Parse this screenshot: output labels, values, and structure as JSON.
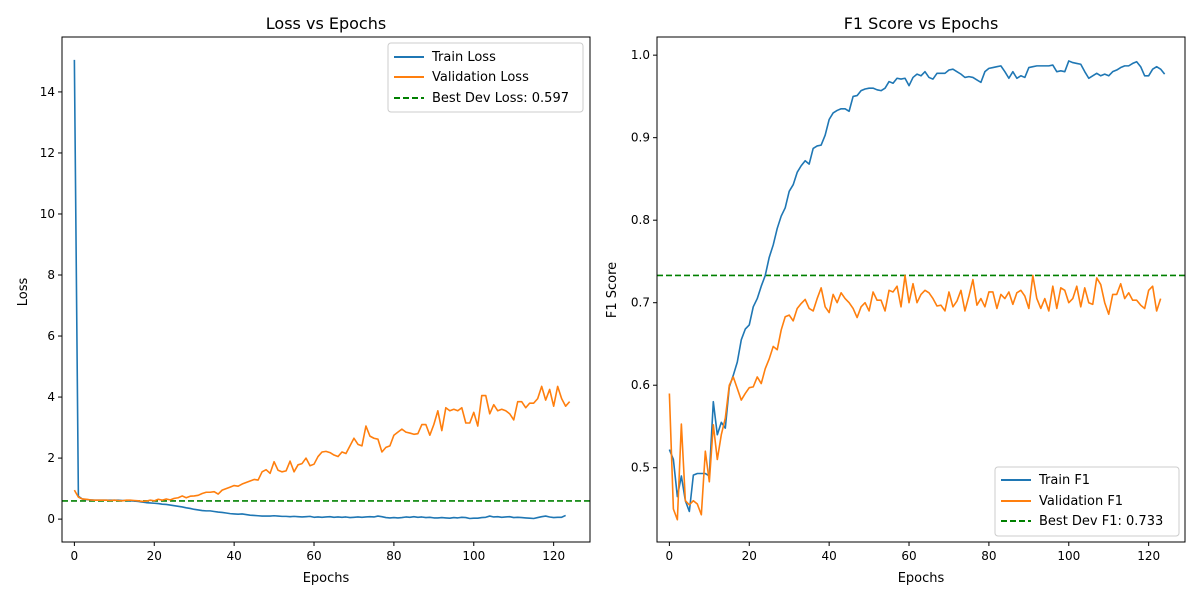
{
  "chart_data": [
    {
      "id": "loss",
      "type": "line",
      "title": "Loss vs Epochs",
      "xlabel": "Epochs",
      "ylabel": "Loss",
      "xlim": [
        -3.1,
        129.1
      ],
      "ylim": [
        -0.75,
        15.8
      ],
      "xticks": [
        0,
        20,
        40,
        60,
        80,
        100,
        120
      ],
      "yticks": [
        0,
        2,
        4,
        6,
        8,
        10,
        12,
        14
      ],
      "grid": false,
      "legend_position": "top-right",
      "hline": {
        "label": "Best Dev Loss: 0.597",
        "value": 0.597,
        "color": "#008000"
      },
      "series": [
        {
          "name": "Train Loss",
          "color": "#1f77b4",
          "x_start": 0,
          "values": [
            15.05,
            0.75,
            0.66,
            0.64,
            0.63,
            0.62,
            0.62,
            0.62,
            0.62,
            0.62,
            0.62,
            0.62,
            0.61,
            0.61,
            0.6,
            0.59,
            0.58,
            0.56,
            0.54,
            0.53,
            0.52,
            0.51,
            0.49,
            0.48,
            0.46,
            0.44,
            0.42,
            0.4,
            0.37,
            0.35,
            0.32,
            0.3,
            0.28,
            0.27,
            0.27,
            0.25,
            0.23,
            0.22,
            0.2,
            0.18,
            0.17,
            0.16,
            0.17,
            0.15,
            0.13,
            0.12,
            0.11,
            0.1,
            0.1,
            0.1,
            0.11,
            0.1,
            0.09,
            0.09,
            0.08,
            0.09,
            0.08,
            0.07,
            0.08,
            0.09,
            0.06,
            0.07,
            0.06,
            0.07,
            0.08,
            0.06,
            0.07,
            0.06,
            0.07,
            0.05,
            0.06,
            0.07,
            0.06,
            0.07,
            0.08,
            0.07,
            0.1,
            0.08,
            0.05,
            0.04,
            0.05,
            0.04,
            0.05,
            0.07,
            0.06,
            0.08,
            0.06,
            0.07,
            0.05,
            0.06,
            0.04,
            0.04,
            0.05,
            0.04,
            0.03,
            0.05,
            0.04,
            0.06,
            0.05,
            0.02,
            0.03,
            0.03,
            0.05,
            0.06,
            0.1,
            0.07,
            0.08,
            0.06,
            0.07,
            0.08,
            0.05,
            0.06,
            0.05,
            0.04,
            0.03,
            0.02,
            0.05,
            0.08,
            0.1,
            0.07,
            0.05,
            0.06,
            0.06,
            0.12
          ]
        },
        {
          "name": "Validation Loss",
          "color": "#ff7f0e",
          "x_start": 0,
          "values": [
            0.95,
            0.72,
            0.66,
            0.65,
            0.63,
            0.62,
            0.62,
            0.62,
            0.62,
            0.61,
            0.62,
            0.61,
            0.6,
            0.62,
            0.62,
            0.61,
            0.6,
            0.58,
            0.59,
            0.62,
            0.6,
            0.65,
            0.62,
            0.66,
            0.63,
            0.68,
            0.7,
            0.76,
            0.7,
            0.75,
            0.76,
            0.78,
            0.84,
            0.88,
            0.88,
            0.9,
            0.82,
            0.95,
            1.0,
            1.05,
            1.1,
            1.08,
            1.15,
            1.2,
            1.25,
            1.3,
            1.28,
            1.55,
            1.62,
            1.5,
            1.88,
            1.6,
            1.55,
            1.58,
            1.9,
            1.55,
            1.78,
            1.82,
            2.0,
            1.75,
            1.8,
            2.05,
            2.2,
            2.22,
            2.18,
            2.1,
            2.05,
            2.2,
            2.15,
            2.4,
            2.65,
            2.45,
            2.4,
            3.05,
            2.72,
            2.65,
            2.62,
            2.2,
            2.35,
            2.4,
            2.75,
            2.85,
            2.95,
            2.85,
            2.82,
            2.78,
            2.8,
            3.1,
            3.1,
            2.75,
            3.1,
            3.55,
            2.9,
            3.65,
            3.55,
            3.6,
            3.55,
            3.65,
            3.15,
            3.15,
            3.5,
            3.05,
            4.05,
            4.05,
            3.45,
            3.75,
            3.55,
            3.6,
            3.55,
            3.45,
            3.25,
            3.85,
            3.85,
            3.65,
            3.8,
            3.8,
            3.95,
            4.35,
            3.9,
            4.25,
            3.7,
            4.35,
            3.95,
            3.7,
            3.85
          ]
        }
      ]
    },
    {
      "id": "f1",
      "type": "line",
      "title": "F1 Score vs Epochs",
      "xlabel": "Epochs",
      "ylabel": "F1 Score",
      "xlim": [
        -3.1,
        129.1
      ],
      "ylim": [
        0.41,
        1.022
      ],
      "xticks": [
        0,
        20,
        40,
        60,
        80,
        100,
        120
      ],
      "yticks": [
        0.5,
        0.6,
        0.7,
        0.8,
        0.9,
        1.0
      ],
      "grid": false,
      "legend_position": "bottom-right",
      "hline": {
        "label": "Best Dev F1: 0.733",
        "value": 0.733,
        "color": "#008000"
      },
      "series": [
        {
          "name": "Train F1",
          "color": "#1f77b4",
          "x_start": 0,
          "values": [
            0.522,
            0.51,
            0.465,
            0.49,
            0.46,
            0.447,
            0.491,
            0.493,
            0.493,
            0.493,
            0.49,
            0.58,
            0.54,
            0.555,
            0.548,
            0.598,
            0.612,
            0.628,
            0.655,
            0.668,
            0.673,
            0.695,
            0.705,
            0.72,
            0.733,
            0.755,
            0.77,
            0.79,
            0.805,
            0.815,
            0.835,
            0.843,
            0.858,
            0.866,
            0.872,
            0.868,
            0.887,
            0.89,
            0.891,
            0.903,
            0.922,
            0.93,
            0.933,
            0.935,
            0.935,
            0.932,
            0.95,
            0.951,
            0.957,
            0.959,
            0.96,
            0.96,
            0.958,
            0.957,
            0.96,
            0.968,
            0.966,
            0.972,
            0.971,
            0.972,
            0.963,
            0.973,
            0.977,
            0.975,
            0.98,
            0.973,
            0.971,
            0.978,
            0.978,
            0.978,
            0.982,
            0.983,
            0.98,
            0.977,
            0.973,
            0.974,
            0.973,
            0.97,
            0.967,
            0.98,
            0.984,
            0.985,
            0.986,
            0.987,
            0.98,
            0.972,
            0.98,
            0.972,
            0.975,
            0.973,
            0.985,
            0.986,
            0.987,
            0.987,
            0.987,
            0.987,
            0.988,
            0.98,
            0.981,
            0.98,
            0.993,
            0.991,
            0.99,
            0.989,
            0.98,
            0.972,
            0.975,
            0.978,
            0.975,
            0.977,
            0.975,
            0.98,
            0.982,
            0.985,
            0.987,
            0.987,
            0.99,
            0.992,
            0.986,
            0.975,
            0.975,
            0.983,
            0.986,
            0.983,
            0.977
          ]
        },
        {
          "name": "Validation F1",
          "color": "#ff7f0e",
          "x_start": 0,
          "values": [
            0.59,
            0.45,
            0.437,
            0.553,
            0.46,
            0.455,
            0.46,
            0.456,
            0.443,
            0.52,
            0.483,
            0.552,
            0.51,
            0.54,
            0.56,
            0.6,
            0.61,
            0.596,
            0.582,
            0.59,
            0.597,
            0.598,
            0.61,
            0.602,
            0.62,
            0.632,
            0.647,
            0.643,
            0.667,
            0.683,
            0.685,
            0.678,
            0.693,
            0.699,
            0.704,
            0.693,
            0.69,
            0.705,
            0.718,
            0.695,
            0.688,
            0.71,
            0.7,
            0.712,
            0.705,
            0.7,
            0.693,
            0.682,
            0.695,
            0.7,
            0.69,
            0.713,
            0.703,
            0.703,
            0.69,
            0.715,
            0.713,
            0.72,
            0.695,
            0.733,
            0.7,
            0.723,
            0.7,
            0.71,
            0.715,
            0.712,
            0.705,
            0.696,
            0.697,
            0.69,
            0.713,
            0.695,
            0.702,
            0.715,
            0.69,
            0.708,
            0.728,
            0.697,
            0.705,
            0.695,
            0.713,
            0.713,
            0.693,
            0.71,
            0.705,
            0.713,
            0.698,
            0.712,
            0.715,
            0.708,
            0.693,
            0.733,
            0.705,
            0.693,
            0.705,
            0.69,
            0.72,
            0.693,
            0.718,
            0.715,
            0.7,
            0.705,
            0.72,
            0.695,
            0.718,
            0.7,
            0.698,
            0.73,
            0.722,
            0.7,
            0.686,
            0.71,
            0.71,
            0.723,
            0.705,
            0.712,
            0.703,
            0.703,
            0.697,
            0.693,
            0.715,
            0.72,
            0.69,
            0.705
          ]
        }
      ]
    }
  ]
}
